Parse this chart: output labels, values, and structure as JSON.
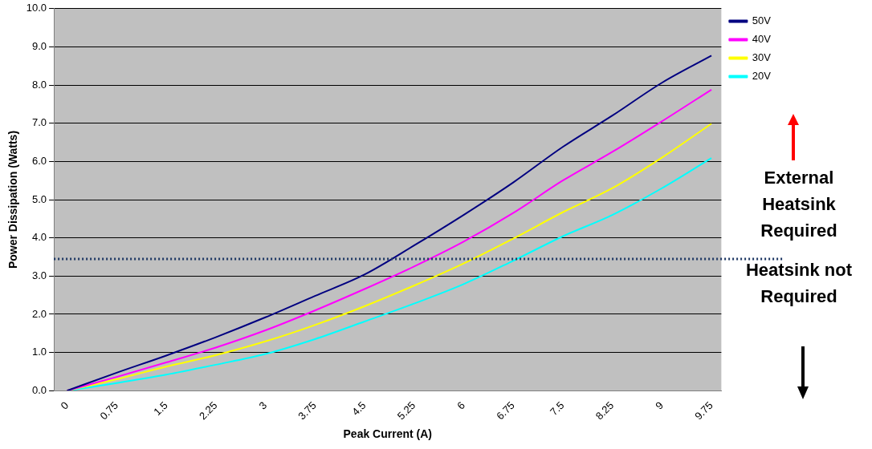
{
  "chart_data": {
    "type": "line",
    "xlabel": "Peak Current (A)",
    "ylabel": "Power Dissipation (Watts)",
    "x": [
      0,
      0.75,
      1.5,
      2.25,
      3,
      3.75,
      4.5,
      5.25,
      6,
      6.75,
      7.5,
      8.25,
      9,
      9.75
    ],
    "series": [
      {
        "name": "50V",
        "color": "#000080",
        "values": [
          0,
          0.47,
          0.92,
          1.4,
          1.92,
          2.48,
          3.04,
          3.8,
          4.6,
          5.45,
          6.38,
          7.2,
          8.06,
          8.77
        ]
      },
      {
        "name": "40V",
        "color": "#ff00ff",
        "values": [
          0,
          0.36,
          0.74,
          1.13,
          1.58,
          2.1,
          2.66,
          3.25,
          3.9,
          4.65,
          5.5,
          6.25,
          7.05,
          7.88
        ]
      },
      {
        "name": "30V",
        "color": "#ffff00",
        "values": [
          0,
          0.3,
          0.63,
          0.93,
          1.29,
          1.72,
          2.21,
          2.75,
          3.33,
          3.98,
          4.67,
          5.3,
          6.1,
          6.99
        ]
      },
      {
        "name": "20V",
        "color": "#00ffff",
        "values": [
          0,
          0.2,
          0.42,
          0.68,
          0.96,
          1.35,
          1.81,
          2.28,
          2.79,
          3.4,
          4.04,
          4.6,
          5.3,
          6.09
        ]
      }
    ],
    "xlim": [
      -0.2,
      9.9
    ],
    "xticks": [
      0,
      0.75,
      1.5,
      2.25,
      3,
      3.75,
      4.5,
      5.25,
      6,
      6.75,
      7.5,
      8.25,
      9,
      9.75
    ],
    "ylim": [
      0,
      10
    ],
    "yticks": [
      {
        "value": 0,
        "label": "0.0"
      },
      {
        "value": 1,
        "label": "1.0"
      },
      {
        "value": 2,
        "label": "2.0"
      },
      {
        "value": 3,
        "label": "3.0"
      },
      {
        "value": 4,
        "label": "4.0"
      },
      {
        "value": 5,
        "label": "5.0"
      },
      {
        "value": 6,
        "label": "6.0"
      },
      {
        "value": 7,
        "label": "7.0"
      },
      {
        "value": 8,
        "label": "8.0"
      },
      {
        "value": 9,
        "label": "9.0"
      },
      {
        "value": 10,
        "label": "10.0"
      }
    ],
    "ref_lines": [
      {
        "axis": "y",
        "value": 3.45,
        "color": "#1f3864",
        "line_style": "dotted"
      }
    ],
    "annotations": [
      "External Heatsink Required",
      "Heatsink not Required"
    ],
    "grid": "y",
    "legend": "top right",
    "marker": "none",
    "line_style": "solid"
  }
}
